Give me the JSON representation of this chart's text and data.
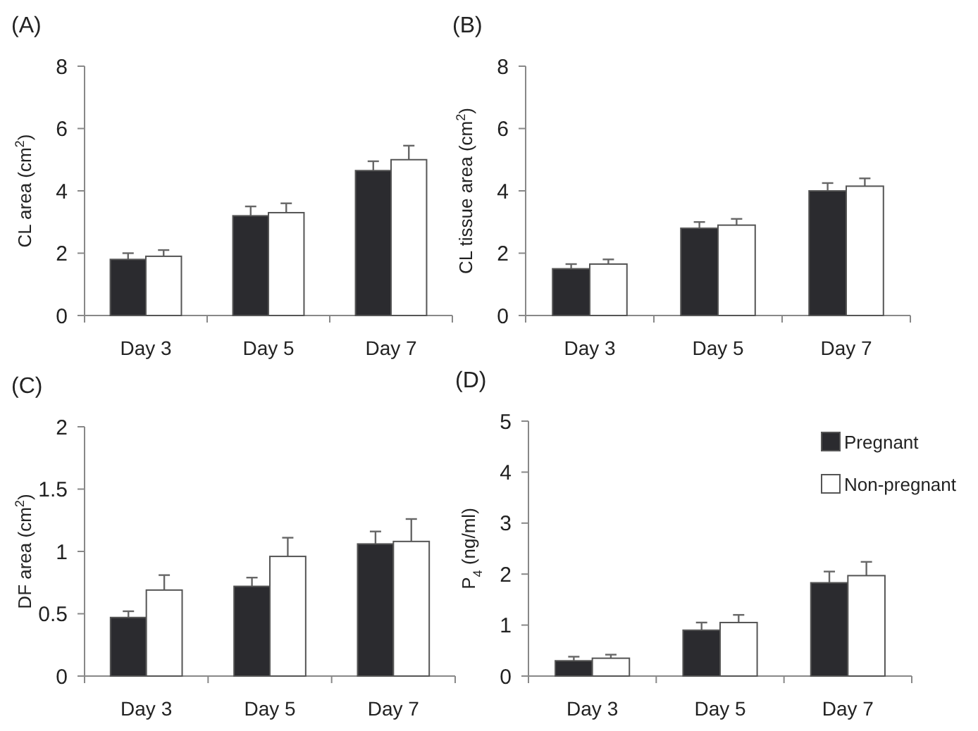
{
  "chart_data": [
    {
      "type": "bar",
      "title": "(A)",
      "ylabel": "CL area (cm$^{2}$)",
      "categories": [
        "Day 3",
        "Day 5",
        "Day 7"
      ],
      "ylim": [
        0,
        8
      ],
      "yticks": [
        0,
        2,
        4,
        6,
        8
      ],
      "series": [
        {
          "color": "#2b2b2f",
          "values": [
            1.8,
            3.2,
            4.65
          ],
          "errors": [
            [
              1.8,
              2.0
            ],
            [
              3.2,
              3.5
            ],
            [
              4.65,
              4.95
            ]
          ]
        },
        {
          "color": "#ffffff",
          "values": [
            1.9,
            3.3,
            5.0
          ],
          "errors": [
            [
              1.9,
              2.1
            ],
            [
              3.3,
              3.6
            ],
            [
              5.0,
              5.45
            ]
          ]
        }
      ]
    },
    {
      "type": "bar",
      "title": "(B)",
      "ylabel": "CL tissue area (cm$^{2}$)",
      "categories": [
        "Day 3",
        "Day 5",
        "Day 7"
      ],
      "ylim": [
        0,
        8
      ],
      "yticks": [
        0,
        2,
        4,
        6,
        8
      ],
      "series": [
        {
          "color": "#2b2b2f",
          "values": [
            1.5,
            2.8,
            4.0
          ],
          "errors": [
            [
              1.5,
              1.65
            ],
            [
              2.8,
              3.0
            ],
            [
              4.0,
              4.25
            ]
          ]
        },
        {
          "color": "#ffffff",
          "values": [
            1.65,
            2.9,
            4.15
          ],
          "errors": [
            [
              1.65,
              1.8
            ],
            [
              2.9,
              3.1
            ],
            [
              4.15,
              4.4
            ]
          ]
        }
      ]
    },
    {
      "type": "bar",
      "title": "(C)",
      "ylabel": "DF  area (cm$^{2}$)",
      "categories": [
        "Day 3",
        "Day 5",
        "Day 7"
      ],
      "ylim": [
        0,
        2
      ],
      "yticks": [
        0,
        0.5,
        1,
        1.5,
        2
      ],
      "series": [
        {
          "color": "#2b2b2f",
          "values": [
            0.47,
            0.72,
            1.06
          ],
          "errors": [
            [
              0.47,
              0.52
            ],
            [
              0.72,
              0.79
            ],
            [
              1.06,
              1.16
            ]
          ]
        },
        {
          "color": "#ffffff",
          "values": [
            0.69,
            0.96,
            1.08
          ],
          "errors": [
            [
              0.69,
              0.81
            ],
            [
              0.96,
              1.11
            ],
            [
              1.08,
              1.26
            ]
          ]
        }
      ]
    },
    {
      "type": "bar",
      "title": "(D)",
      "ylabel": "P$_{4}$ (ng/ml)",
      "categories": [
        "Day 3",
        "Day 5",
        "Day 7"
      ],
      "ylim": [
        0,
        5
      ],
      "yticks": [
        0,
        1,
        2,
        3,
        4,
        5
      ],
      "legend": "top right",
      "series": [
        {
          "name": "Pregnant",
          "color": "#2b2b2f",
          "values": [
            0.3,
            0.9,
            1.83
          ],
          "errors": [
            [
              0.3,
              0.38
            ],
            [
              0.9,
              1.05
            ],
            [
              1.83,
              2.05
            ]
          ]
        },
        {
          "name": "Non-pregnant",
          "color": "#ffffff",
          "values": [
            0.35,
            1.05,
            1.97
          ],
          "errors": [
            [
              0.35,
              0.42
            ],
            [
              1.05,
              1.2
            ],
            [
              1.97,
              2.24
            ]
          ]
        }
      ]
    }
  ]
}
